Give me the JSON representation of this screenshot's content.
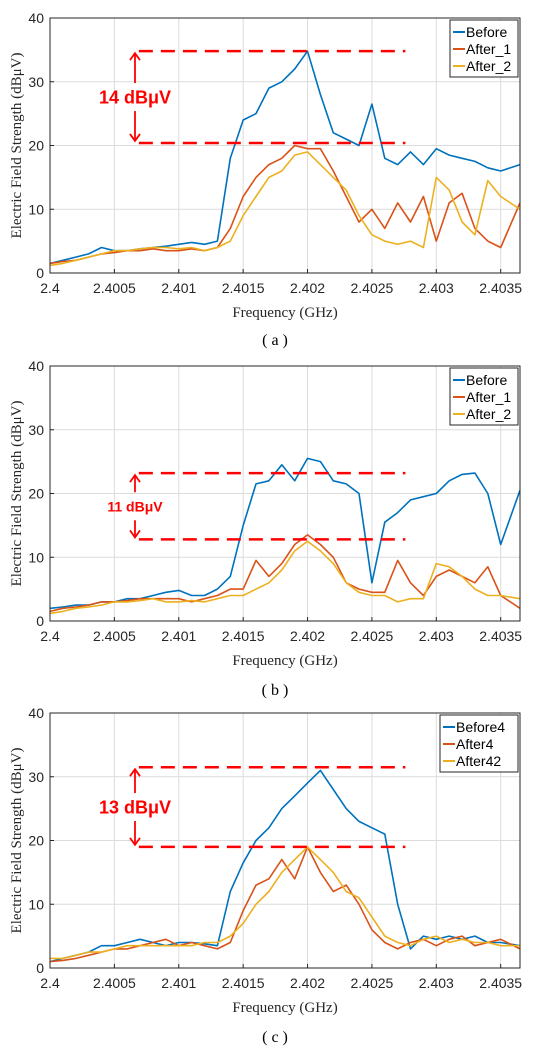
{
  "colors": {
    "series": [
      "#0072BD",
      "#D95319",
      "#EDB120"
    ],
    "annotation": "#FF0000"
  },
  "chart_data": [
    {
      "type": "line",
      "caption": "( a )",
      "xlabel": "Frequency (GHz)",
      "ylabel": "Electric Field Strength (dBμV)",
      "xlim": [
        2.4,
        2.40365
      ],
      "ylim": [
        0,
        40
      ],
      "xticks": [
        "2.4",
        "2.4005",
        "2.401",
        "2.4015",
        "2.402",
        "2.4025",
        "2.403",
        "2.4035"
      ],
      "yticks": [
        "0",
        "10",
        "20",
        "30",
        "40"
      ],
      "grid": true,
      "legend": "top-right",
      "annotation": {
        "text": "14 dBμV",
        "upper": 34.8,
        "lower": 20.4
      },
      "series": [
        {
          "name": "Before",
          "x": [
            2.4,
            2.4001,
            2.4002,
            2.4003,
            2.4004,
            2.4005,
            2.4006,
            2.4007,
            2.4008,
            2.4009,
            2.401,
            2.4011,
            2.4012,
            2.4013,
            2.4014,
            2.4015,
            2.4016,
            2.4017,
            2.4018,
            2.4019,
            2.402,
            2.4021,
            2.4022,
            2.4023,
            2.4024,
            2.4025,
            2.4026,
            2.4027,
            2.4028,
            2.4029,
            2.403,
            2.4031,
            2.4032,
            2.4033,
            2.4034,
            2.4035,
            2.40365
          ],
          "y": [
            1.5,
            2,
            2.5,
            3,
            4,
            3.5,
            3.5,
            3.8,
            4,
            4.2,
            4.5,
            4.8,
            4.5,
            5,
            18,
            24,
            25,
            29,
            30,
            32,
            34.8,
            28,
            22,
            21,
            20,
            26.5,
            18,
            17,
            19,
            17,
            19.5,
            18.5,
            18,
            17.5,
            16.5,
            16,
            17
          ]
        },
        {
          "name": "After_1",
          "x": [
            2.4,
            2.4001,
            2.4002,
            2.4003,
            2.4004,
            2.4005,
            2.4006,
            2.4007,
            2.4008,
            2.4009,
            2.401,
            2.4011,
            2.4012,
            2.4013,
            2.4014,
            2.4015,
            2.4016,
            2.4017,
            2.4018,
            2.4019,
            2.402,
            2.4021,
            2.4022,
            2.4023,
            2.4024,
            2.4025,
            2.4026,
            2.4027,
            2.4028,
            2.4029,
            2.403,
            2.4031,
            2.4032,
            2.4033,
            2.4034,
            2.4035,
            2.40365
          ],
          "y": [
            1.5,
            1.8,
            2,
            2.5,
            3,
            3.2,
            3.5,
            3.5,
            3.8,
            3.5,
            3.5,
            3.8,
            3.5,
            4,
            7,
            12,
            15,
            17,
            18,
            20,
            19.5,
            19.5,
            16,
            12,
            8,
            10,
            7,
            11,
            8,
            12,
            5,
            11,
            12.5,
            7,
            5,
            4,
            11
          ]
        },
        {
          "name": "After_2",
          "x": [
            2.4,
            2.4001,
            2.4002,
            2.4003,
            2.4004,
            2.4005,
            2.4006,
            2.4007,
            2.4008,
            2.4009,
            2.401,
            2.4011,
            2.4012,
            2.4013,
            2.4014,
            2.4015,
            2.4016,
            2.4017,
            2.4018,
            2.4019,
            2.402,
            2.4021,
            2.4022,
            2.4023,
            2.4024,
            2.4025,
            2.4026,
            2.4027,
            2.4028,
            2.4029,
            2.403,
            2.4031,
            2.4032,
            2.4033,
            2.4034,
            2.4035,
            2.40365
          ],
          "y": [
            1.2,
            1.5,
            2,
            2.5,
            3,
            3.5,
            3.5,
            3.8,
            4,
            4,
            3.8,
            4,
            3.5,
            4,
            5,
            9,
            12,
            15,
            16,
            18.5,
            19,
            17,
            15,
            13,
            9,
            6,
            5,
            4.5,
            5,
            4,
            15,
            13,
            8,
            6,
            14.5,
            12,
            10
          ]
        }
      ]
    },
    {
      "type": "line",
      "caption": "( b )",
      "xlabel": "Frequency (GHz)",
      "ylabel": "Electric Field Strength (dBμV)",
      "xlim": [
        2.4,
        2.40365
      ],
      "ylim": [
        0,
        40
      ],
      "xticks": [
        "2.4",
        "2.4005",
        "2.401",
        "2.4015",
        "2.402",
        "2.4025",
        "2.403",
        "2.4035"
      ],
      "yticks": [
        "0",
        "10",
        "20",
        "30",
        "40"
      ],
      "grid": true,
      "legend": "top-right",
      "annotation": {
        "text": "11 dBμV",
        "upper": 23.2,
        "lower": 12.8
      },
      "series": [
        {
          "name": "Before",
          "x": [
            2.4,
            2.4001,
            2.4002,
            2.4003,
            2.4004,
            2.4005,
            2.4006,
            2.4007,
            2.4008,
            2.4009,
            2.401,
            2.4011,
            2.4012,
            2.4013,
            2.4014,
            2.4015,
            2.4016,
            2.4017,
            2.4018,
            2.4019,
            2.402,
            2.4021,
            2.4022,
            2.4023,
            2.4024,
            2.4025,
            2.4026,
            2.4027,
            2.4028,
            2.4029,
            2.403,
            2.4031,
            2.4032,
            2.4033,
            2.4034,
            2.4035,
            2.40365
          ],
          "y": [
            2,
            2.2,
            2.5,
            2.5,
            3,
            3,
            3.5,
            3.5,
            4,
            4.5,
            4.8,
            4,
            4,
            5,
            7,
            15,
            21.5,
            22,
            24.5,
            22,
            25.5,
            25,
            22,
            21.5,
            20,
            6,
            15.5,
            17,
            19,
            19.5,
            20,
            22,
            23,
            23.2,
            20,
            12,
            20.5
          ]
        },
        {
          "name": "After_1",
          "x": [
            2.4,
            2.4001,
            2.4002,
            2.4003,
            2.4004,
            2.4005,
            2.4006,
            2.4007,
            2.4008,
            2.4009,
            2.401,
            2.4011,
            2.4012,
            2.4013,
            2.4014,
            2.4015,
            2.4016,
            2.4017,
            2.4018,
            2.4019,
            2.402,
            2.4021,
            2.4022,
            2.4023,
            2.4024,
            2.4025,
            2.4026,
            2.4027,
            2.4028,
            2.4029,
            2.403,
            2.4031,
            2.4032,
            2.4033,
            2.4034,
            2.4035,
            2.40365
          ],
          "y": [
            1.5,
            2,
            2.2,
            2.5,
            3,
            3,
            3.2,
            3.5,
            3.5,
            3.5,
            3.5,
            3,
            3.5,
            4,
            5,
            5,
            9.5,
            7,
            9,
            12,
            13.5,
            12,
            10,
            6,
            5,
            4.5,
            4.5,
            9.5,
            6,
            4,
            7,
            8,
            7,
            6,
            8.5,
            4,
            2
          ]
        },
        {
          "name": "After_2",
          "x": [
            2.4,
            2.4001,
            2.4002,
            2.4003,
            2.4004,
            2.4005,
            2.4006,
            2.4007,
            2.4008,
            2.4009,
            2.401,
            2.4011,
            2.4012,
            2.4013,
            2.4014,
            2.4015,
            2.4016,
            2.4017,
            2.4018,
            2.4019,
            2.402,
            2.4021,
            2.4022,
            2.4023,
            2.4024,
            2.4025,
            2.4026,
            2.4027,
            2.4028,
            2.4029,
            2.403,
            2.4031,
            2.4032,
            2.4033,
            2.4034,
            2.4035,
            2.40365
          ],
          "y": [
            1.2,
            1.5,
            2,
            2.2,
            2.5,
            3,
            3,
            3.2,
            3.5,
            3,
            3,
            3.2,
            3,
            3.5,
            4,
            4,
            5,
            6,
            8,
            11,
            12.5,
            11,
            9,
            6,
            4.5,
            4,
            4,
            3,
            3.5,
            3.5,
            9,
            8.5,
            7,
            5,
            4,
            4,
            3.5
          ]
        }
      ]
    },
    {
      "type": "line",
      "caption": "( c )",
      "xlabel": "Frequency (GHz)",
      "ylabel": "Electric Field Strength (dBμV)",
      "xlim": [
        2.4,
        2.40365
      ],
      "ylim": [
        0,
        40
      ],
      "xticks": [
        "2.4",
        "2.4005",
        "2.401",
        "2.4015",
        "2.402",
        "2.4025",
        "2.403",
        "2.4035"
      ],
      "yticks": [
        "0",
        "10",
        "20",
        "30",
        "40"
      ],
      "grid": true,
      "legend": "top-right",
      "annotation": {
        "text": "13 dBμV",
        "upper": 31.5,
        "lower": 19
      },
      "series": [
        {
          "name": "Before4",
          "x": [
            2.4,
            2.4001,
            2.4002,
            2.4003,
            2.4004,
            2.4005,
            2.4006,
            2.4007,
            2.4008,
            2.4009,
            2.401,
            2.4011,
            2.4012,
            2.4013,
            2.4014,
            2.4015,
            2.4016,
            2.4017,
            2.4018,
            2.4019,
            2.402,
            2.4021,
            2.4022,
            2.4023,
            2.4024,
            2.4025,
            2.4026,
            2.4027,
            2.4028,
            2.4029,
            2.403,
            2.4031,
            2.4032,
            2.4033,
            2.4034,
            2.4035,
            2.40365
          ],
          "y": [
            1,
            1.5,
            2,
            2.5,
            3.5,
            3.5,
            4,
            4.5,
            4,
            3.5,
            4,
            4,
            3.8,
            3.5,
            12,
            16.5,
            20,
            22,
            25,
            27,
            29,
            31,
            28,
            25,
            23,
            22,
            21,
            10,
            3,
            5,
            4.5,
            5,
            4.5,
            5,
            4,
            4,
            3.5
          ]
        },
        {
          "name": "After4",
          "x": [
            2.4,
            2.4001,
            2.4002,
            2.4003,
            2.4004,
            2.4005,
            2.4006,
            2.4007,
            2.4008,
            2.4009,
            2.401,
            2.4011,
            2.4012,
            2.4013,
            2.4014,
            2.4015,
            2.4016,
            2.4017,
            2.4018,
            2.4019,
            2.402,
            2.4021,
            2.4022,
            2.4023,
            2.4024,
            2.4025,
            2.4026,
            2.4027,
            2.4028,
            2.4029,
            2.403,
            2.4031,
            2.4032,
            2.4033,
            2.4034,
            2.4035,
            2.40365
          ],
          "y": [
            1,
            1.2,
            1.5,
            2,
            2.5,
            3,
            3,
            3.5,
            4,
            4.5,
            3.5,
            4,
            3.5,
            3,
            4,
            9,
            13,
            14,
            17,
            14,
            19,
            15,
            12,
            13,
            10,
            6,
            4,
            3,
            4,
            4.5,
            3.5,
            4.5,
            5,
            3.5,
            4,
            4.5,
            3
          ]
        },
        {
          "name": "After42",
          "x": [
            2.4,
            2.4001,
            2.4002,
            2.4003,
            2.4004,
            2.4005,
            2.4006,
            2.4007,
            2.4008,
            2.4009,
            2.401,
            2.4011,
            2.4012,
            2.4013,
            2.4014,
            2.4015,
            2.4016,
            2.4017,
            2.4018,
            2.4019,
            2.402,
            2.4021,
            2.4022,
            2.4023,
            2.4024,
            2.4025,
            2.4026,
            2.4027,
            2.4028,
            2.4029,
            2.403,
            2.4031,
            2.4032,
            2.4033,
            2.4034,
            2.4035,
            2.40365
          ],
          "y": [
            1.5,
            1.5,
            2,
            2.5,
            2.5,
            3,
            3.5,
            3.5,
            3.5,
            3.5,
            3.5,
            3.5,
            4,
            4,
            5,
            7,
            10,
            12,
            15,
            17,
            19,
            17,
            15,
            12,
            11,
            8,
            5,
            4,
            3.5,
            4.5,
            5,
            4,
            4.5,
            4,
            4,
            3.5,
            3.5
          ]
        }
      ]
    }
  ]
}
